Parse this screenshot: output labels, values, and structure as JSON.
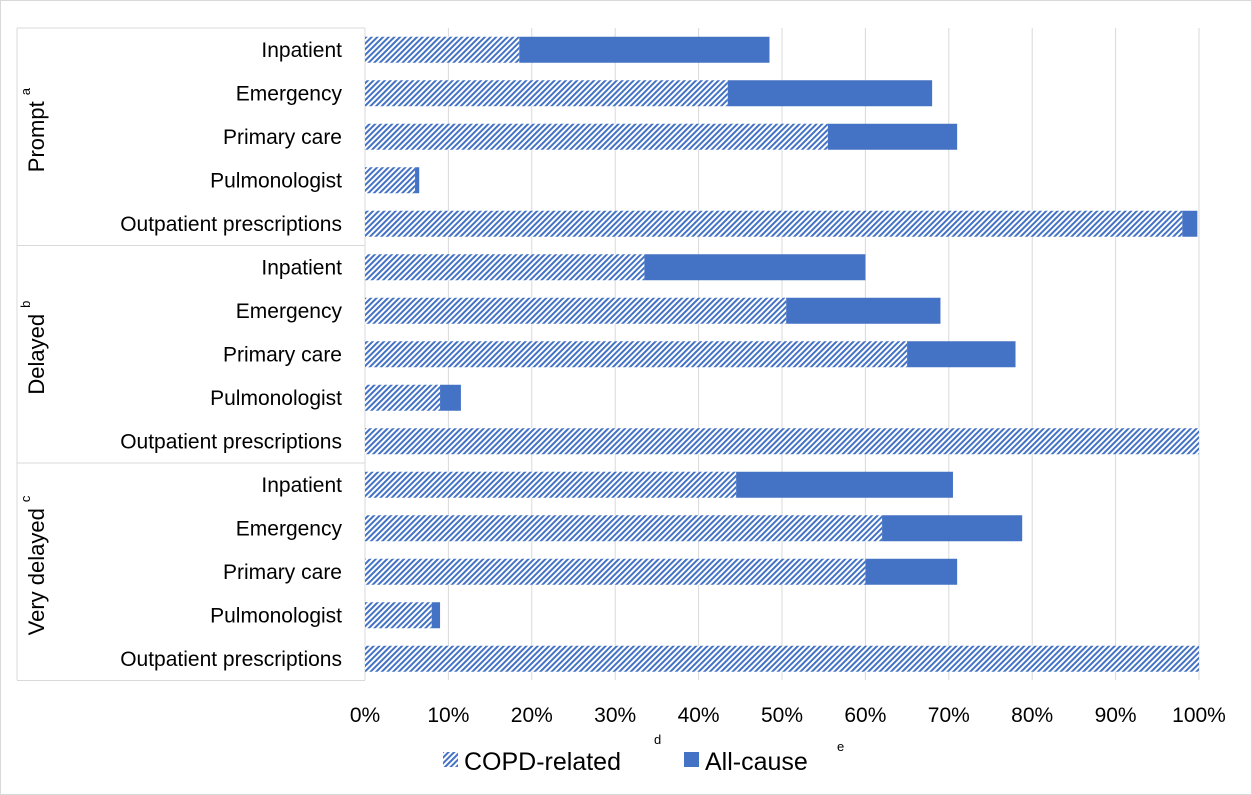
{
  "chart_data": {
    "type": "bar",
    "orientation": "horizontal",
    "stacked": true,
    "xlim": [
      0,
      100
    ],
    "x_ticks": [
      "0%",
      "10%",
      "20%",
      "30%",
      "40%",
      "50%",
      "60%",
      "70%",
      "80%",
      "90%",
      "100%"
    ],
    "grid": true,
    "legend_position": "bottom",
    "groups": [
      {
        "label": "Prompt",
        "superscript": "a",
        "categories": [
          "Inpatient",
          "Emergency",
          "Primary care",
          "Pulmonologist",
          "Outpatient prescriptions"
        ],
        "copd_related": [
          18.5,
          43.5,
          55.5,
          6.0,
          98.0
        ],
        "all_cause_total": [
          48.5,
          68.0,
          71.0,
          6.5,
          99.8
        ]
      },
      {
        "label": "Delayed",
        "superscript": "b",
        "categories": [
          "Inpatient",
          "Emergency",
          "Primary care",
          "Pulmonologist",
          "Outpatient prescriptions"
        ],
        "copd_related": [
          33.5,
          50.5,
          65.0,
          9.0,
          100.0
        ],
        "all_cause_total": [
          60.0,
          69.0,
          78.0,
          11.5,
          100.0
        ]
      },
      {
        "label": "Very delayed",
        "superscript": "c",
        "categories": [
          "Inpatient",
          "Emergency",
          "Primary care",
          "Pulmonologist",
          "Outpatient prescriptions"
        ],
        "copd_related": [
          44.5,
          62.0,
          60.0,
          8.0,
          100.0
        ],
        "all_cause_total": [
          70.5,
          78.8,
          71.0,
          9.0,
          100.0
        ]
      }
    ],
    "series": [
      {
        "name": "COPD-related",
        "superscript": "d",
        "pattern": "diagonal-hatch",
        "color": "#4472C4"
      },
      {
        "name": "All-cause",
        "superscript": "e",
        "pattern": "solid",
        "color": "#4472C4"
      }
    ]
  }
}
